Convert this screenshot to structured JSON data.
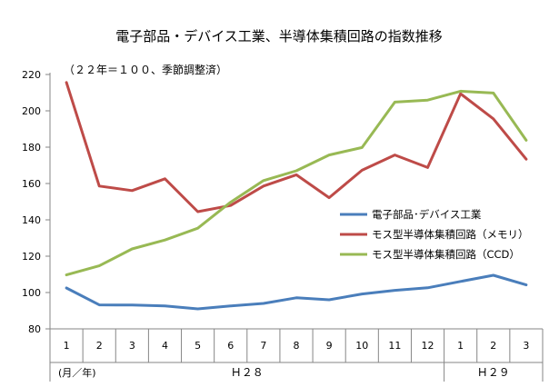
{
  "chart_data": {
    "type": "line",
    "title": "電子部品・デバイス工業、半導体集積回路の指数推移",
    "note": "（２２年＝１００、季節調整済）",
    "xlabel": "",
    "ylabel": "",
    "x_unit_label": "(月／年)",
    "categories": [
      "1",
      "2",
      "3",
      "4",
      "5",
      "6",
      "7",
      "8",
      "9",
      "10",
      "11",
      "12",
      "1",
      "2",
      "3"
    ],
    "year_groups": [
      {
        "label": "Ｈ２８",
        "from": 0,
        "to": 11
      },
      {
        "label": "Ｈ２９",
        "from": 12,
        "to": 14
      }
    ],
    "ylim": [
      80,
      220
    ],
    "yticks": [
      80,
      100,
      120,
      140,
      160,
      180,
      200,
      220
    ],
    "grid": false,
    "legend_position": "right-middle",
    "series": [
      {
        "name": "電子部品･デバイス工業",
        "color": "#4a7ebb",
        "values": [
          102.5,
          93.2,
          93.1,
          92.6,
          91.0,
          92.6,
          94.0,
          97.1,
          96.0,
          99.2,
          101.2,
          102.6,
          106.1,
          109.5,
          104.2
        ]
      },
      {
        "name": "モス型半導体集積回路（メモリ）",
        "color": "#be4b48",
        "values": [
          215.6,
          158.6,
          156.1,
          162.6,
          144.5,
          147.9,
          158.6,
          164.8,
          152.2,
          167.3,
          175.7,
          168.8,
          209.4,
          195.6,
          173.4
        ]
      },
      {
        "name": "モス型半導体集積回路（CCD）",
        "color": "#98b954",
        "values": [
          109.7,
          114.7,
          124.0,
          128.9,
          135.4,
          149.7,
          161.6,
          167.0,
          175.7,
          179.8,
          204.8,
          205.9,
          210.8,
          209.8,
          183.8
        ]
      }
    ]
  }
}
